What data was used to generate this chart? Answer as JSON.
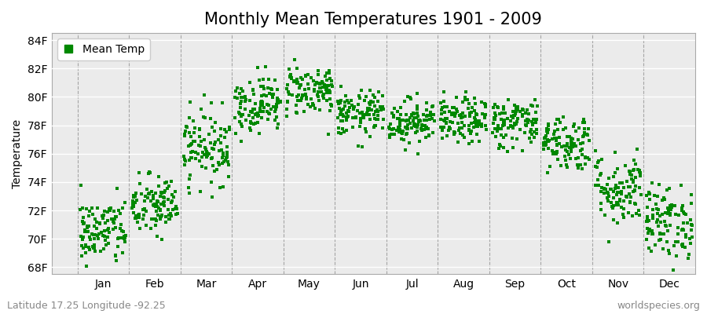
{
  "title": "Monthly Mean Temperatures 1901 - 2009",
  "ylabel": "Temperature",
  "ytick_labels": [
    "68F",
    "70F",
    "72F",
    "74F",
    "76F",
    "78F",
    "80F",
    "82F",
    "84F"
  ],
  "ytick_values": [
    68,
    70,
    72,
    74,
    76,
    78,
    80,
    82,
    84
  ],
  "ylim": [
    67.5,
    84.5
  ],
  "months": [
    "Jan",
    "Feb",
    "Mar",
    "Apr",
    "May",
    "Jun",
    "Jul",
    "Aug",
    "Sep",
    "Oct",
    "Nov",
    "Dec"
  ],
  "mean_temps": [
    70.5,
    72.3,
    76.5,
    79.5,
    80.5,
    78.8,
    78.3,
    78.3,
    78.2,
    76.8,
    73.5,
    71.2
  ],
  "std_temps": [
    1.2,
    1.1,
    1.3,
    1.0,
    0.9,
    0.8,
    0.8,
    0.8,
    0.9,
    1.0,
    1.3,
    1.3
  ],
  "n_years": 109,
  "dot_color": "#008800",
  "dot_size": 5,
  "figure_bg": "#ffffff",
  "plot_bg": "#ebebeb",
  "grid_color": "#888888",
  "legend_label": "Mean Temp",
  "footer_left": "Latitude 17.25 Longitude -92.25",
  "footer_right": "worldspecies.org",
  "title_fontsize": 15,
  "axis_label_fontsize": 10,
  "tick_fontsize": 10,
  "footer_fontsize": 9
}
